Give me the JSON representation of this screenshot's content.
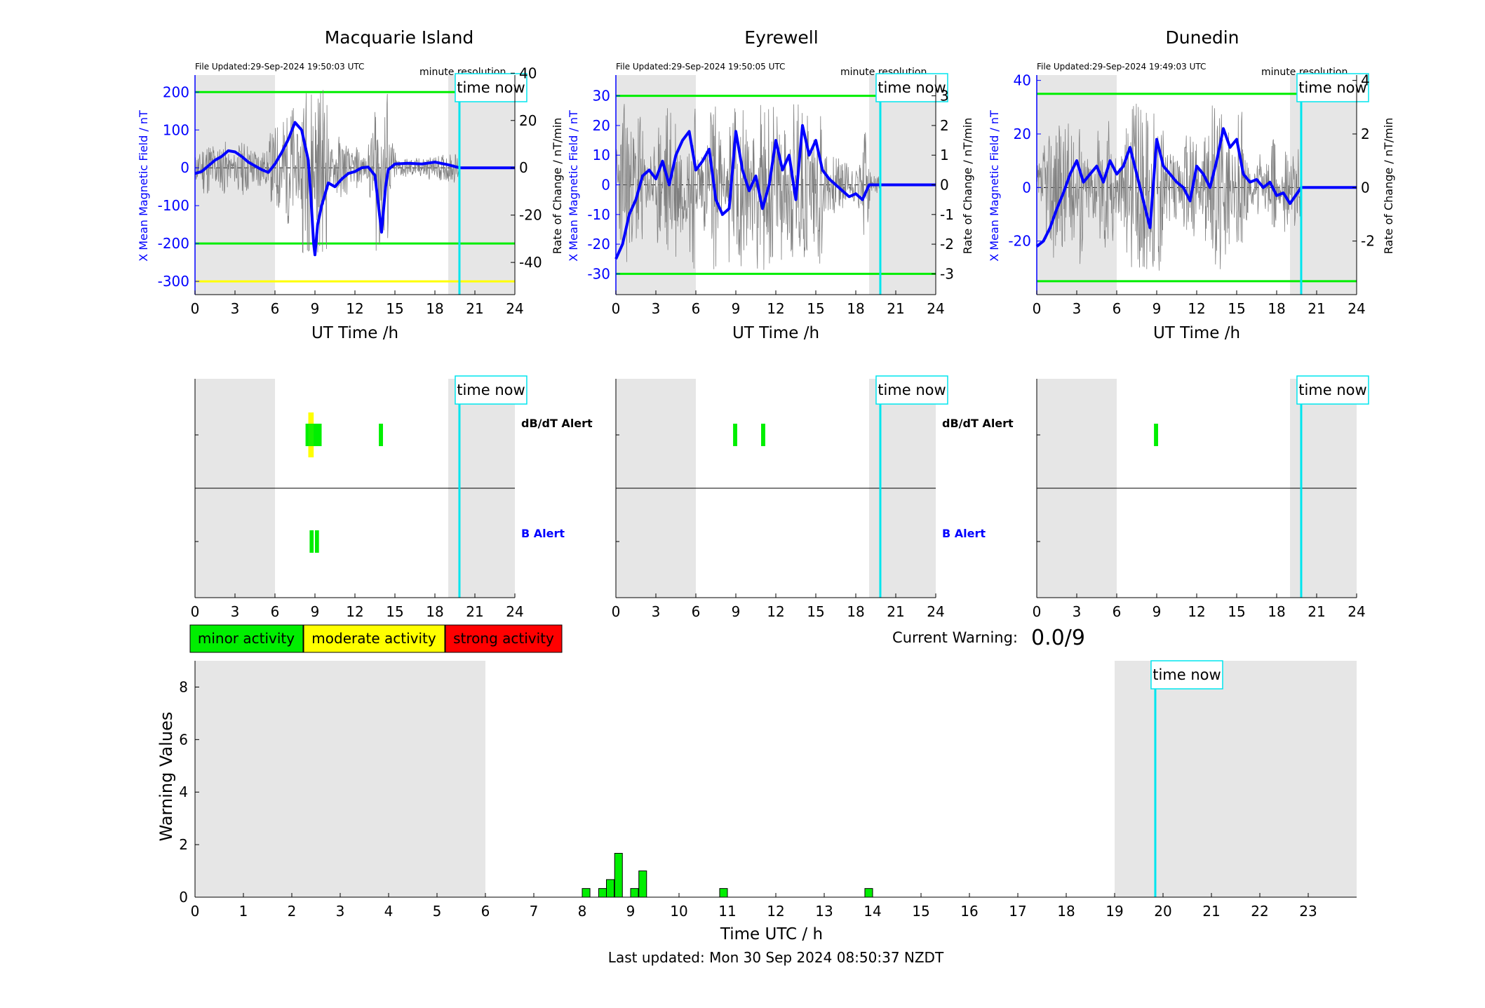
{
  "colors": {
    "blue": "#0000ff",
    "green": "#00ee00",
    "yellow": "#ffff00",
    "red": "#ff0000",
    "cyan": "#00e5ee",
    "night_shade": "#e6e6e6",
    "grey_trace": "#808080"
  },
  "labels": {
    "minute_resolution": "minute resolution",
    "time_now": "time now",
    "ut_xlabel": "UT Time /h",
    "b_ylabel": "X Mean Magnetic Field / nT",
    "rate_ylabel": "Rate of Change / nT/min",
    "dbdt_alert": "dB/dT Alert",
    "b_alert": "B Alert",
    "current_warning_label": "Current Warning:",
    "current_warning_value": "0.0/9",
    "warning_ylabel": "Warning Values",
    "warning_xlabel": "Time UTC / h",
    "last_updated": "Last updated: Mon 30 Sep 2024 08:50:37 NZDT"
  },
  "legend": [
    {
      "label": "minor activity",
      "color": "#00ee00"
    },
    {
      "label": "moderate activity",
      "color": "#ffff00"
    },
    {
      "label": "strong activity",
      "color": "#ff0000"
    }
  ],
  "chart_data": [
    {
      "type": "line",
      "title": "Macquarie Island",
      "file_updated": "File Updated:29-Sep-2024 19:50:03 UTC",
      "xlabel": "UT Time /h",
      "ylabel": "X Mean Magnetic Field / nT",
      "ylabel_right": "Rate of Change / nT/min",
      "xlim": [
        0,
        24
      ],
      "ylim": [
        -335,
        245
      ],
      "ylim_right": [
        -53.6,
        39.2
      ],
      "xticks": [
        0,
        3,
        6,
        9,
        12,
        15,
        18,
        21,
        24
      ],
      "yticks": [
        -300,
        -200,
        -100,
        0,
        100,
        200
      ],
      "yticks_right": [
        -40,
        -20,
        0,
        20,
        40
      ],
      "night": [
        [
          0,
          6
        ],
        [
          19,
          24
        ]
      ],
      "time_now": 19.84,
      "thresholds": [
        {
          "value": 200,
          "color": "green"
        },
        {
          "value": -200,
          "color": "green"
        },
        {
          "value": -300,
          "color": "yellow"
        }
      ],
      "x": [
        0,
        0.5,
        1,
        1.5,
        2,
        2.5,
        3,
        3.5,
        4,
        4.5,
        5,
        5.5,
        6,
        6.5,
        7,
        7.5,
        8,
        8.5,
        8.7,
        8.9,
        9,
        9.2,
        9.5,
        10,
        10.5,
        11,
        11.5,
        12,
        12.5,
        13,
        13.5,
        13.8,
        14,
        14.3,
        14.5,
        15,
        16,
        17,
        18,
        19,
        19.84,
        24
      ],
      "series": [
        {
          "values": [
            -15,
            -10,
            5,
            20,
            30,
            45,
            42,
            30,
            15,
            5,
            -5,
            -12,
            10,
            40,
            75,
            120,
            100,
            20,
            -80,
            -200,
            -230,
            -150,
            -100,
            -40,
            -50,
            -30,
            -15,
            -10,
            0,
            2,
            -20,
            -110,
            -170,
            -50,
            -5,
            10,
            12,
            10,
            15,
            8,
            0,
            0
          ]
        }
      ]
    },
    {
      "type": "line",
      "title": "Eyrewell",
      "file_updated": "File Updated:29-Sep-2024 19:50:05 UTC",
      "xlabel": "UT Time /h",
      "ylabel": "X Mean Magnetic Field / nT",
      "ylabel_right": "Rate of Change / nT/min",
      "xlim": [
        0,
        24
      ],
      "ylim": [
        -37,
        37
      ],
      "ylim_right": [
        -3.7,
        3.7
      ],
      "xticks": [
        0,
        3,
        6,
        9,
        12,
        15,
        18,
        21,
        24
      ],
      "yticks": [
        -30,
        -20,
        -10,
        0,
        10,
        20,
        30
      ],
      "yticks_right": [
        -3,
        -2,
        -1,
        0,
        1,
        2,
        3
      ],
      "night": [
        [
          0,
          6
        ],
        [
          19,
          24
        ]
      ],
      "time_now": 19.84,
      "thresholds": [
        {
          "value": 30,
          "color": "green"
        },
        {
          "value": -30,
          "color": "green"
        }
      ],
      "x": [
        0,
        0.5,
        1,
        1.5,
        2,
        2.5,
        3,
        3.5,
        4,
        4.5,
        5,
        5.5,
        6,
        6.5,
        7,
        7.5,
        8,
        8.5,
        9,
        9.5,
        10,
        10.5,
        11,
        11.5,
        12,
        12.5,
        13,
        13.5,
        14,
        14.5,
        15,
        15.5,
        16,
        16.5,
        17,
        17.5,
        18,
        18.5,
        19,
        19.84,
        24
      ],
      "series": [
        {
          "values": [
            -25,
            -20,
            -10,
            -5,
            3,
            5,
            2,
            8,
            0,
            10,
            15,
            18,
            5,
            8,
            12,
            -5,
            -10,
            -8,
            18,
            5,
            -2,
            3,
            -8,
            0,
            15,
            5,
            10,
            -5,
            20,
            10,
            15,
            5,
            2,
            0,
            -2,
            -4,
            -3,
            -5,
            0,
            0,
            0
          ]
        }
      ]
    },
    {
      "type": "line",
      "title": "Dunedin",
      "file_updated": "File Updated:29-Sep-2024 19:49:03 UTC",
      "xlabel": "UT Time /h",
      "ylabel": "X Mean Magnetic Field / nT",
      "ylabel_right": "Rate of Change / nT/min",
      "xlim": [
        0,
        24
      ],
      "ylim": [
        -40,
        42
      ],
      "ylim_right": [
        -4.0,
        4.2
      ],
      "xticks": [
        0,
        3,
        6,
        9,
        12,
        15,
        18,
        21,
        24
      ],
      "yticks": [
        -20,
        0,
        20,
        40
      ],
      "yticks_right": [
        -2,
        0,
        2,
        4
      ],
      "night": [
        [
          0,
          6
        ],
        [
          19,
          24
        ]
      ],
      "time_now": 19.84,
      "thresholds": [
        {
          "value": 35,
          "color": "green"
        },
        {
          "value": -35,
          "color": "green"
        }
      ],
      "x": [
        0,
        0.5,
        1,
        1.5,
        2,
        2.5,
        3,
        3.5,
        4,
        4.5,
        5,
        5.5,
        6,
        6.5,
        7,
        7.5,
        8,
        8.5,
        9,
        9.5,
        10,
        10.5,
        11,
        11.5,
        12,
        12.5,
        13,
        13.5,
        14,
        14.5,
        15,
        15.5,
        16,
        16.5,
        17,
        17.5,
        18,
        18.5,
        19,
        19.84,
        24
      ],
      "series": [
        {
          "values": [
            -22,
            -20,
            -15,
            -8,
            -2,
            5,
            10,
            2,
            5,
            8,
            2,
            10,
            5,
            8,
            15,
            5,
            -5,
            -15,
            18,
            8,
            5,
            2,
            0,
            -5,
            8,
            5,
            0,
            10,
            22,
            15,
            18,
            5,
            2,
            3,
            0,
            2,
            -3,
            -2,
            -6,
            0,
            0
          ]
        }
      ]
    },
    {
      "type": "bar",
      "title": "",
      "xlim": [
        0,
        24
      ],
      "xticks": [
        0,
        3,
        6,
        9,
        12,
        15,
        18,
        21,
        24
      ],
      "night": [
        [
          0,
          6
        ],
        [
          19,
          24
        ]
      ],
      "time_now": 19.84,
      "labels_right": [
        "dB/dT Alert",
        "B Alert"
      ],
      "dbdt_alerts": [
        {
          "start": 8.3,
          "end": 9.5,
          "color": "green"
        },
        {
          "start": 8.5,
          "end": 8.9,
          "color": "yellow"
        },
        {
          "start": 13.8,
          "end": 14.1,
          "color": "green"
        }
      ],
      "b_alerts": [
        {
          "start": 8.6,
          "end": 8.9,
          "color": "green"
        },
        {
          "start": 9.0,
          "end": 9.3,
          "color": "green"
        }
      ]
    },
    {
      "type": "bar",
      "title": "",
      "xlim": [
        0,
        24
      ],
      "xticks": [
        0,
        3,
        6,
        9,
        12,
        15,
        18,
        21,
        24
      ],
      "night": [
        [
          0,
          6
        ],
        [
          19,
          24
        ]
      ],
      "time_now": 19.84,
      "labels_right": [
        "dB/dT Alert",
        "B Alert"
      ],
      "dbdt_alerts": [
        {
          "start": 8.8,
          "end": 9.1,
          "color": "green"
        },
        {
          "start": 10.9,
          "end": 11.2,
          "color": "green"
        }
      ],
      "b_alerts": []
    },
    {
      "type": "bar",
      "title": "",
      "xlim": [
        0,
        24
      ],
      "xticks": [
        0,
        3,
        6,
        9,
        12,
        15,
        18,
        21,
        24
      ],
      "night": [
        [
          0,
          6
        ],
        [
          19,
          24
        ]
      ],
      "time_now": 19.84,
      "labels_right": [],
      "dbdt_alerts": [
        {
          "start": 8.8,
          "end": 9.1,
          "color": "green"
        }
      ],
      "b_alerts": []
    },
    {
      "type": "bar",
      "title": "",
      "xlabel": "Time UTC / h",
      "ylabel": "Warning Values",
      "xlim": [
        0,
        24
      ],
      "ylim": [
        0,
        9
      ],
      "xticks": [
        0,
        1,
        2,
        3,
        4,
        5,
        6,
        7,
        8,
        9,
        10,
        11,
        12,
        13,
        14,
        15,
        16,
        17,
        18,
        19,
        20,
        21,
        22,
        23
      ],
      "yticks": [
        0,
        2,
        4,
        6,
        8
      ],
      "night": [
        [
          0,
          6
        ],
        [
          19,
          24
        ]
      ],
      "time_now": 19.84,
      "bar_width": 0.16,
      "x": [
        8.08,
        8.42,
        8.58,
        8.75,
        9.08,
        9.25,
        10.92,
        13.92
      ],
      "values": [
        0.33,
        0.33,
        0.67,
        1.67,
        0.33,
        1.0,
        0.33,
        0.33
      ]
    }
  ]
}
